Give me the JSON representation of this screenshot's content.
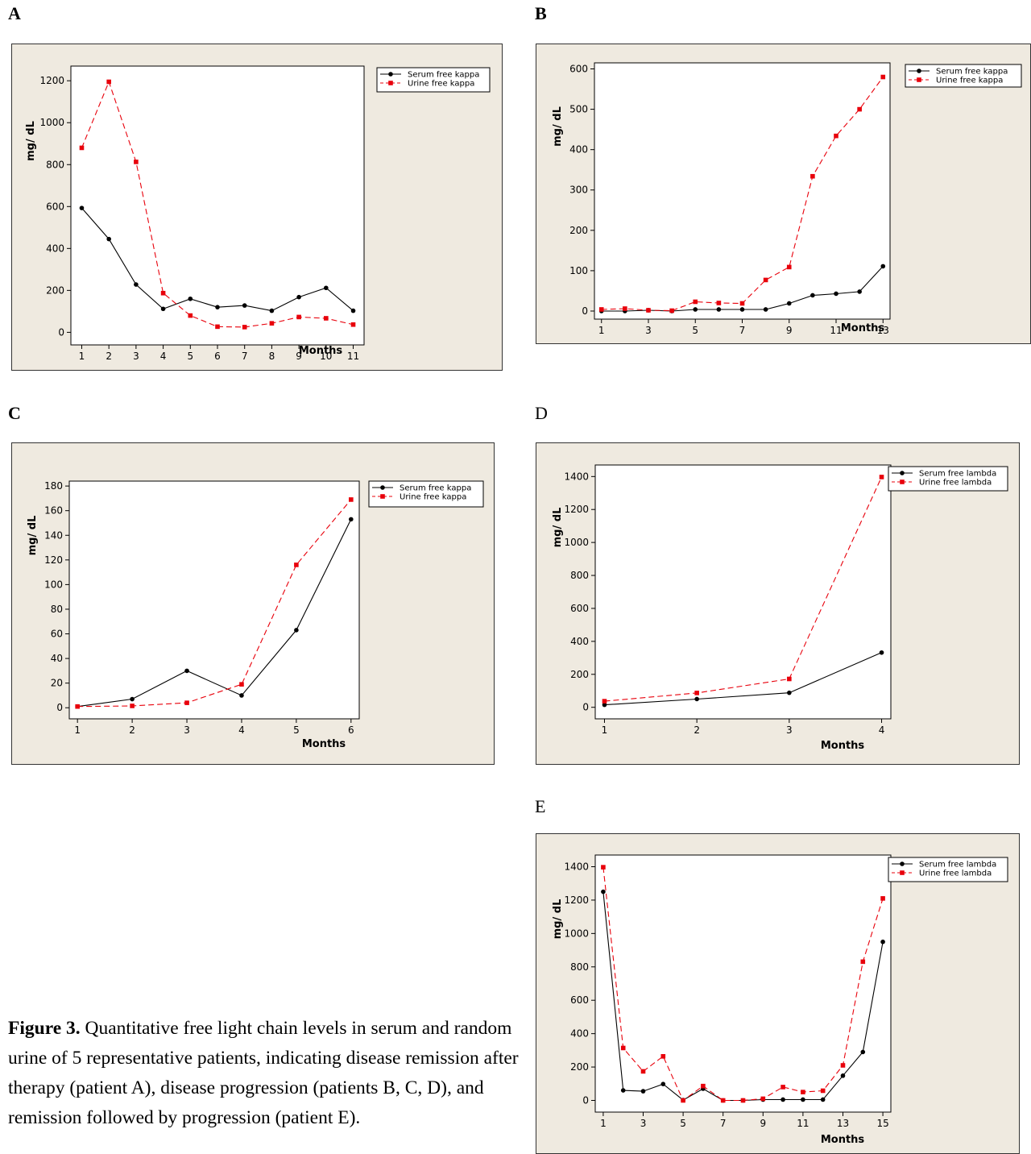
{
  "panel_labels": {
    "A": "A",
    "B": "B",
    "C": "C",
    "D": "D",
    "E": "E"
  },
  "caption": {
    "lead": "Figure 3.",
    "text": " Quantitative free light chain levels in serum and random urine of 5 representative patients, indicating disease remission after therapy (patient A), disease progression (patients B, C, D), and remission followed by progression (patient E)."
  },
  "colors": {
    "serum": "#000000",
    "urine": "#e8000b",
    "panel_bg": "#efeae0",
    "plot_bg": "#ffffff"
  },
  "chart_data": [
    {
      "id": "A",
      "type": "line",
      "xlabel": "Months",
      "ylabel": "mg/ dL",
      "ylim": [
        -60,
        1270
      ],
      "yticks": [
        0,
        200,
        400,
        600,
        800,
        1000,
        1200
      ],
      "xticks": [
        1,
        2,
        3,
        4,
        5,
        6,
        7,
        8,
        9,
        10,
        11
      ],
      "xlim": [
        0.6,
        11.4
      ],
      "legend": "top-right",
      "series": [
        {
          "name": "Serum free kappa",
          "style": "solid",
          "marker": "circle",
          "x": [
            1,
            2,
            3,
            4,
            5,
            6,
            7,
            8,
            9,
            10,
            11
          ],
          "values": [
            593,
            445,
            228,
            112,
            160,
            120,
            128,
            103,
            168,
            212,
            103
          ]
        },
        {
          "name": "Urine free kappa",
          "style": "dashed",
          "marker": "square",
          "x": [
            1,
            2,
            3,
            4,
            5,
            6,
            7,
            8,
            9,
            10,
            11
          ],
          "values": [
            880,
            1195,
            813,
            187,
            80,
            27,
            25,
            43,
            73,
            67,
            37
          ]
        }
      ]
    },
    {
      "id": "B",
      "type": "line",
      "xlabel": "Months",
      "ylabel": "mg/ dL",
      "ylim": [
        -20,
        615
      ],
      "yticks": [
        0,
        100,
        200,
        300,
        400,
        500,
        600
      ],
      "xticks": [
        1,
        3,
        5,
        7,
        9,
        11,
        13
      ],
      "xlim": [
        0.7,
        13.3
      ],
      "legend": "top-right",
      "series": [
        {
          "name": "Serum free kappa",
          "style": "solid",
          "marker": "circle",
          "x": [
            1,
            2,
            3,
            4,
            5,
            6,
            7,
            8,
            9,
            10,
            11,
            12,
            13
          ],
          "values": [
            0,
            0,
            2,
            0,
            4,
            4,
            4,
            4,
            19,
            39,
            43,
            48,
            111
          ]
        },
        {
          "name": "Urine free kappa",
          "style": "dashed",
          "marker": "square",
          "x": [
            1,
            2,
            3,
            4,
            5,
            6,
            7,
            8,
            9,
            10,
            11,
            12,
            13
          ],
          "values": [
            4,
            6,
            2,
            1,
            23,
            20,
            19,
            77,
            109,
            334,
            434,
            500,
            580
          ]
        }
      ]
    },
    {
      "id": "C",
      "type": "line",
      "xlabel": "Months",
      "ylabel": "mg/ dL",
      "ylim": [
        -9,
        184
      ],
      "yticks": [
        0,
        20,
        40,
        60,
        80,
        100,
        120,
        140,
        160,
        180
      ],
      "xticks": [
        1,
        2,
        3,
        4,
        5,
        6
      ],
      "xlim": [
        0.85,
        6.15
      ],
      "legend": "top-right",
      "series": [
        {
          "name": "Serum free kappa",
          "style": "solid",
          "marker": "circle",
          "x": [
            1,
            2,
            3,
            4,
            5,
            6
          ],
          "values": [
            1,
            7,
            30,
            10,
            63,
            153
          ]
        },
        {
          "name": "Urine free kappa",
          "style": "dashed",
          "marker": "square",
          "x": [
            1,
            2,
            3,
            4,
            5,
            6
          ],
          "values": [
            1,
            1.5,
            4,
            19,
            116,
            169
          ]
        }
      ]
    },
    {
      "id": "D",
      "type": "line",
      "xlabel": "Months",
      "ylabel": "mg/ dL",
      "ylim": [
        -70,
        1470
      ],
      "yticks": [
        0,
        200,
        400,
        600,
        800,
        1000,
        1200,
        1400
      ],
      "xticks": [
        1,
        2,
        3,
        4
      ],
      "xlim": [
        0.9,
        4.1
      ],
      "legend": "top-right",
      "series": [
        {
          "name": "Serum free lambda",
          "style": "solid",
          "marker": "circle",
          "x": [
            1,
            2,
            3,
            4
          ],
          "values": [
            15,
            50,
            88,
            332
          ]
        },
        {
          "name": "Urine free lambda",
          "style": "dashed",
          "marker": "square",
          "x": [
            1,
            2,
            3,
            4
          ],
          "values": [
            37,
            87,
            172,
            1397
          ]
        }
      ]
    },
    {
      "id": "E",
      "type": "line",
      "xlabel": "Months",
      "ylabel": "mg/ dL",
      "ylim": [
        -70,
        1470
      ],
      "yticks": [
        0,
        200,
        400,
        600,
        800,
        1000,
        1200,
        1400
      ],
      "xticks": [
        1,
        3,
        5,
        7,
        9,
        11,
        13,
        15
      ],
      "xlim": [
        0.6,
        15.4
      ],
      "legend": "top-right",
      "series": [
        {
          "name": "Serum free lambda",
          "style": "solid",
          "marker": "circle",
          "x": [
            1,
            2,
            3,
            4,
            5,
            6,
            7,
            8,
            9,
            10,
            11,
            12,
            13,
            14,
            15
          ],
          "values": [
            1250,
            60,
            55,
            98,
            2,
            70,
            0,
            0,
            5,
            5,
            5,
            5,
            148,
            290,
            950
          ]
        },
        {
          "name": "Urine free lambda",
          "style": "dashed",
          "marker": "square",
          "x": [
            1,
            2,
            3,
            4,
            5,
            6,
            7,
            8,
            9,
            10,
            11,
            12,
            13,
            14,
            15
          ],
          "values": [
            1397,
            314,
            174,
            264,
            0,
            86,
            0,
            0,
            10,
            80,
            50,
            58,
            210,
            831,
            1210
          ]
        }
      ]
    }
  ]
}
